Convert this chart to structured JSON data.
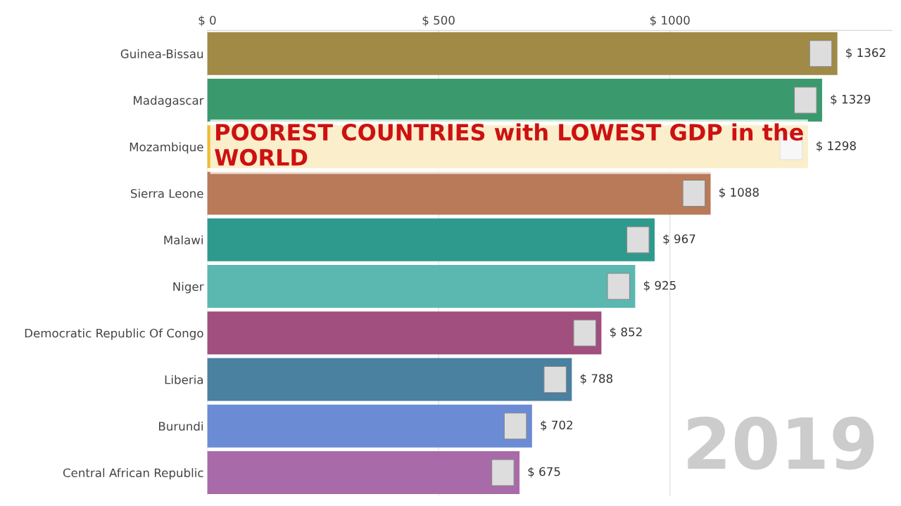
{
  "chart_data": {
    "type": "bar",
    "orientation": "horizontal",
    "title": "POOREST COUNTRIES with LOWEST GDP in the WORLD",
    "categories": [
      "Guinea-Bissau",
      "Madagascar",
      "Mozambique",
      "Sierra Leone",
      "Malawi",
      "Niger",
      "Democratic Republic Of Congo",
      "Liberia",
      "Burundi",
      "Central African Republic"
    ],
    "values": [
      1362,
      1329,
      1298,
      1088,
      967,
      925,
      852,
      788,
      702,
      675
    ],
    "colors": [
      "#a08a45",
      "#3a9a6e",
      "#eebc30",
      "#b87a58",
      "#2e9a8e",
      "#5ab8b0",
      "#a04f7e",
      "#4a80a0",
      "#6b8bd4",
      "#a86aa8"
    ],
    "value_labels": [
      "$ 1362",
      "$ 1329",
      "$ 1298",
      "$ 1088",
      "$ 967",
      "$ 925",
      "$ 852",
      "$ 788",
      "$ 702",
      "$ 675"
    ],
    "xlim": [
      0,
      1480
    ],
    "xticks": [
      {
        "value": 0,
        "label": "$ 0"
      },
      {
        "value": 500,
        "label": "$ 500"
      },
      {
        "value": 1000,
        "label": "$ 1000"
      }
    ],
    "grid": "x",
    "annotations": [
      "2019"
    ]
  }
}
